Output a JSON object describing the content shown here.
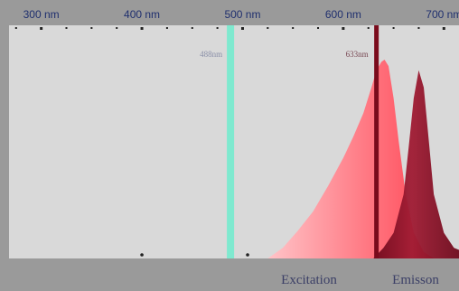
{
  "chart_data": {
    "type": "area",
    "title": "",
    "xlabel": "",
    "ylabel": "",
    "x_unit": "nm",
    "xlim": [
      268,
      715
    ],
    "ylim": [
      0,
      1
    ],
    "x_ticks": [
      300,
      400,
      500,
      600,
      700
    ],
    "x_tick_labels": [
      "300 nm",
      "400 nm",
      "500 nm",
      "600 nm",
      "700 nm"
    ],
    "grid": false,
    "laser_lines": [
      {
        "wavelength": 488,
        "label": "488nm",
        "color": "#7fe9cf"
      },
      {
        "wavelength": 633,
        "label": "633nm",
        "color": "#7a0b1c"
      }
    ],
    "series": [
      {
        "name": "Excitation",
        "color": "#ff7e88",
        "x": [
          525,
          540,
          555,
          570,
          585,
          600,
          610,
          620,
          628,
          633,
          638,
          641,
          645,
          650,
          655,
          662,
          670,
          680,
          690
        ],
        "y": [
          0.0,
          0.05,
          0.13,
          0.22,
          0.34,
          0.47,
          0.57,
          0.68,
          0.8,
          0.88,
          0.92,
          0.93,
          0.9,
          0.75,
          0.55,
          0.3,
          0.12,
          0.03,
          0.0
        ]
      },
      {
        "name": "Emisson",
        "color": "#8a1428",
        "x": [
          630,
          640,
          650,
          660,
          665,
          670,
          675,
          680,
          685,
          690,
          700,
          710,
          715
        ],
        "y": [
          0.0,
          0.05,
          0.12,
          0.3,
          0.52,
          0.75,
          0.88,
          0.8,
          0.55,
          0.3,
          0.12,
          0.05,
          0.04
        ]
      }
    ],
    "legend_placement": "bottom"
  }
}
